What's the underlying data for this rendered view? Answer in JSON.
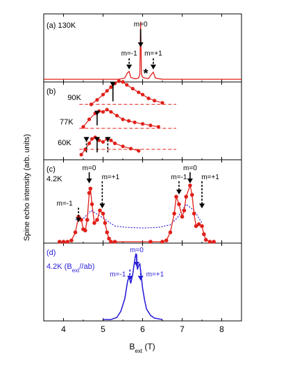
{
  "chart_data": [
    {
      "panel": "a",
      "type": "line",
      "label": "(a) 130K",
      "color": "#e0201a",
      "markers": false,
      "xlim": [
        3.5,
        8.5
      ],
      "series": [
        {
          "x": [
            3.5,
            4.0,
            4.5,
            5.0,
            5.4,
            5.55,
            5.62,
            5.66,
            5.7,
            5.78,
            5.85,
            5.9,
            5.93,
            5.95,
            5.97,
            6.0,
            6.05,
            6.15,
            6.23,
            6.27,
            6.32,
            6.4,
            6.5,
            7.0,
            7.5,
            8.0,
            8.5
          ],
          "y": [
            0.02,
            0.02,
            0.02,
            0.02,
            0.02,
            0.04,
            0.12,
            0.14,
            0.05,
            0.03,
            0.03,
            0.04,
            0.1,
            0.9,
            0.1,
            0.05,
            0.04,
            0.03,
            0.1,
            0.13,
            0.04,
            0.03,
            0.02,
            0.02,
            0.02,
            0.02,
            0.02
          ]
        }
      ],
      "annotations": [
        {
          "text": "m=0",
          "x": 5.95,
          "style": "solid"
        },
        {
          "text": "m=-1",
          "x": 5.66,
          "style": "dashed"
        },
        {
          "text": "m=+1",
          "x": 6.27,
          "style": "dashed"
        },
        {
          "text": "*",
          "x": 6.08
        }
      ]
    },
    {
      "panel": "b",
      "type": "line",
      "label": "(b)",
      "color": "#e0201a",
      "markers": true,
      "xlim": [
        3.5,
        8.5
      ],
      "series": [
        {
          "name": "90K",
          "baseline": 0.72,
          "x": [
            4.7,
            4.85,
            5.0,
            5.1,
            5.2,
            5.3,
            5.4,
            5.5,
            5.6,
            5.75,
            5.9,
            6.0,
            6.15,
            6.3,
            6.5
          ],
          "y": [
            0.72,
            0.78,
            0.85,
            0.9,
            0.95,
            1.0,
            1.03,
            1.02,
            0.98,
            0.93,
            0.88,
            0.85,
            0.8,
            0.77,
            0.74
          ]
        },
        {
          "name": "77K",
          "baseline": 0.4,
          "x": [
            4.5,
            4.65,
            4.8,
            4.9,
            5.0,
            5.1,
            5.2,
            5.35,
            5.5,
            5.65,
            5.8,
            6.0,
            6.2,
            6.4
          ],
          "y": [
            0.42,
            0.52,
            0.6,
            0.63,
            0.62,
            0.65,
            0.62,
            0.57,
            0.52,
            0.5,
            0.48,
            0.46,
            0.44,
            0.42
          ]
        },
        {
          "name": "60K",
          "baseline": 0.12,
          "x": [
            4.45,
            4.55,
            4.65,
            4.72,
            4.8,
            4.9,
            5.0,
            5.1,
            5.2,
            5.3,
            5.5,
            5.7,
            5.9
          ],
          "y": [
            0.05,
            0.12,
            0.2,
            0.26,
            0.28,
            0.24,
            0.22,
            0.26,
            0.24,
            0.2,
            0.16,
            0.13,
            0.1
          ]
        }
      ],
      "arrows_x": [
        5.25,
        4.85,
        4.58,
        4.85,
        5.12
      ]
    },
    {
      "panel": "c",
      "type": "line",
      "label": "(c)",
      "temperature": "4.2K",
      "color": "#e0201a",
      "fit_color": "#2a20d8",
      "markers": true,
      "xlim": [
        3.5,
        8.5
      ],
      "series": [
        {
          "name": "data",
          "x": [
            3.9,
            4.0,
            4.1,
            4.2,
            4.3,
            4.38,
            4.45,
            4.5,
            4.55,
            4.6,
            4.65,
            4.68,
            4.72,
            4.78,
            4.85,
            4.92,
            5.0,
            5.05,
            5.1,
            5.15,
            5.2,
            5.3,
            6.2,
            6.5,
            6.6,
            6.7,
            6.8,
            6.85,
            6.92,
            7.0,
            7.05,
            7.1,
            7.2,
            7.25,
            7.3,
            7.35,
            7.42,
            7.5,
            7.55,
            7.6,
            7.7,
            7.8
          ],
          "y": [
            0.0,
            0.0,
            0.0,
            0.02,
            0.15,
            0.4,
            0.35,
            0.2,
            0.18,
            0.35,
            0.78,
            0.85,
            0.6,
            0.3,
            0.35,
            0.5,
            0.45,
            0.3,
            0.15,
            0.05,
            0.0,
            0.0,
            0.0,
            0.0,
            0.02,
            0.15,
            0.45,
            0.72,
            0.6,
            0.4,
            0.5,
            0.72,
            0.9,
            0.75,
            0.45,
            0.25,
            0.28,
            0.25,
            0.12,
            0.03,
            0.0,
            0.0
          ]
        },
        {
          "name": "fit",
          "x": [
            4.3,
            4.5,
            4.7,
            5.0,
            5.3,
            5.6,
            6.0,
            6.4,
            6.7,
            6.9,
            7.1,
            7.3,
            7.5
          ],
          "y": [
            0.35,
            0.37,
            0.5,
            0.38,
            0.25,
            0.23,
            0.22,
            0.23,
            0.27,
            0.4,
            0.6,
            0.5,
            0.3
          ]
        }
      ],
      "annotations": [
        {
          "text": "m=-1",
          "x": 4.38,
          "style": "dashed"
        },
        {
          "text": "m=0",
          "x": 4.65,
          "style": "solid"
        },
        {
          "text": "m=+1",
          "x": 4.98,
          "style": "dashed"
        },
        {
          "text": "m=-1",
          "x": 6.92,
          "style": "dashed"
        },
        {
          "text": "m=0",
          "x": 7.2,
          "style": "solid"
        },
        {
          "text": "m=+1",
          "x": 7.5,
          "style": "dashed"
        }
      ]
    },
    {
      "panel": "d",
      "type": "line",
      "label": "(d)",
      "label2": "4.2K (B",
      "label2_sub": "ext",
      "label2_end": "//ab)",
      "color": "#2a20d8",
      "markers": false,
      "xlim": [
        3.5,
        8.5
      ],
      "series": [
        {
          "x": [
            5.0,
            5.2,
            5.35,
            5.45,
            5.55,
            5.62,
            5.66,
            5.7,
            5.75,
            5.8,
            5.83,
            5.85,
            5.87,
            5.9,
            5.93,
            5.96,
            6.0,
            6.05,
            6.1,
            6.2,
            6.3,
            6.5
          ],
          "y": [
            0.0,
            0.0,
            0.03,
            0.12,
            0.3,
            0.55,
            0.62,
            0.52,
            0.65,
            0.85,
            0.95,
            0.88,
            0.72,
            0.78,
            0.8,
            0.65,
            0.45,
            0.28,
            0.15,
            0.06,
            0.02,
            0.0
          ]
        }
      ],
      "annotations": [
        {
          "text": "m=0",
          "x": 5.85,
          "style": "solid"
        },
        {
          "text": "m=-1",
          "x": 5.68,
          "style": "dashed"
        },
        {
          "text": "m=+1",
          "x": 5.95,
          "style": "dashed"
        }
      ]
    }
  ],
  "axes": {
    "ylabel": "Spine echo intensity (arb. units)",
    "xlabel_main": "B",
    "xlabel_sub": "ext",
    "xlabel_unit": " (T)",
    "xticks": [
      "4",
      "5",
      "6",
      "7",
      "8"
    ],
    "xtick_values": [
      4,
      5,
      6,
      7,
      8
    ]
  }
}
